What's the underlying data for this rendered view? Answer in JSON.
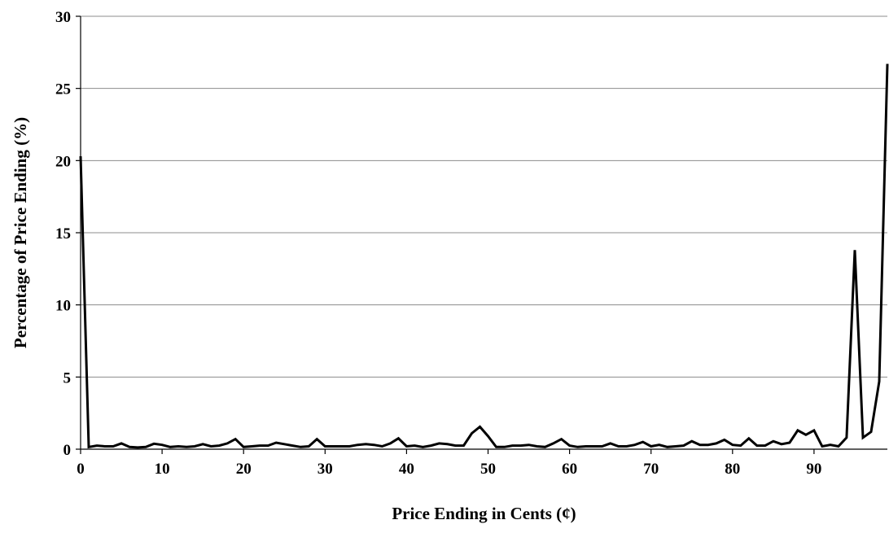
{
  "chart_data": {
    "type": "line",
    "title": "",
    "xlabel": "Price Ending in Cents (¢)",
    "ylabel": "Percentage of Price Ending (%)",
    "xlim": [
      0,
      99
    ],
    "ylim": [
      0,
      30
    ],
    "x_ticks": [
      0,
      10,
      20,
      30,
      40,
      50,
      60,
      70,
      80,
      90
    ],
    "y_ticks": [
      0,
      5,
      10,
      15,
      20,
      25,
      30
    ],
    "grid": "horizontal",
    "series": [
      {
        "color": "#000000",
        "x": [
          0,
          1,
          2,
          3,
          4,
          5,
          6,
          7,
          8,
          9,
          10,
          11,
          12,
          13,
          14,
          15,
          16,
          17,
          18,
          19,
          20,
          21,
          22,
          23,
          24,
          25,
          26,
          27,
          28,
          29,
          30,
          31,
          32,
          33,
          34,
          35,
          36,
          37,
          38,
          39,
          40,
          41,
          42,
          43,
          44,
          45,
          46,
          47,
          48,
          49,
          50,
          51,
          52,
          53,
          54,
          55,
          56,
          57,
          58,
          59,
          60,
          61,
          62,
          63,
          64,
          65,
          66,
          67,
          68,
          69,
          70,
          71,
          72,
          73,
          74,
          75,
          76,
          77,
          78,
          79,
          80,
          81,
          82,
          83,
          84,
          85,
          86,
          87,
          88,
          89,
          90,
          91,
          92,
          93,
          94,
          95,
          96,
          97,
          98,
          99
        ],
        "values": [
          20.3,
          0.15,
          0.25,
          0.2,
          0.2,
          0.4,
          0.15,
          0.12,
          0.15,
          0.38,
          0.3,
          0.15,
          0.2,
          0.15,
          0.2,
          0.35,
          0.2,
          0.25,
          0.4,
          0.7,
          0.15,
          0.2,
          0.25,
          0.25,
          0.45,
          0.35,
          0.25,
          0.15,
          0.2,
          0.7,
          0.2,
          0.2,
          0.2,
          0.2,
          0.3,
          0.35,
          0.3,
          0.2,
          0.4,
          0.75,
          0.2,
          0.25,
          0.15,
          0.25,
          0.4,
          0.35,
          0.25,
          0.25,
          1.1,
          1.55,
          0.9,
          0.15,
          0.15,
          0.25,
          0.25,
          0.3,
          0.2,
          0.15,
          0.4,
          0.7,
          0.25,
          0.15,
          0.2,
          0.2,
          0.2,
          0.4,
          0.2,
          0.2,
          0.3,
          0.5,
          0.2,
          0.3,
          0.15,
          0.2,
          0.25,
          0.55,
          0.3,
          0.3,
          0.4,
          0.65,
          0.3,
          0.25,
          0.75,
          0.25,
          0.25,
          0.55,
          0.35,
          0.45,
          1.3,
          1.0,
          1.3,
          0.2,
          0.3,
          0.2,
          0.8,
          13.8,
          0.8,
          1.2,
          4.7,
          26.7
        ]
      }
    ]
  }
}
